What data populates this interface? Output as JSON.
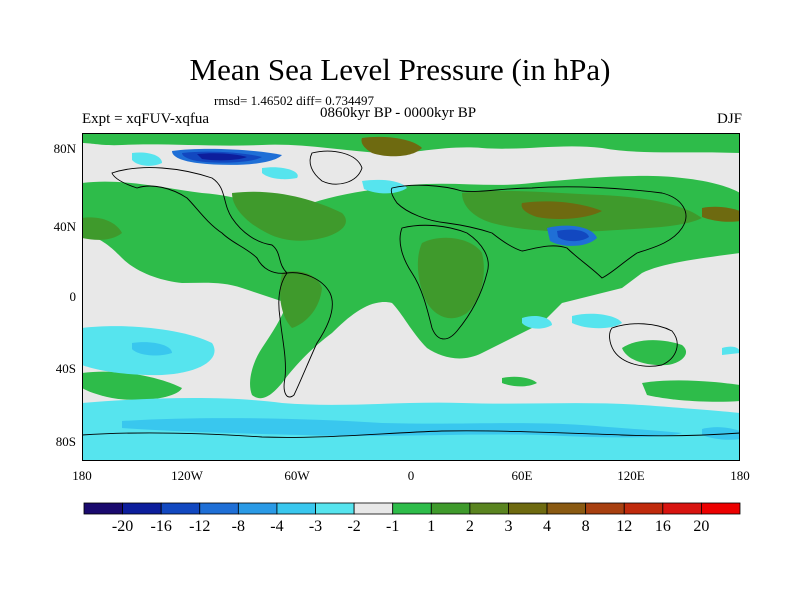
{
  "title": "Mean Sea Level Pressure (in hPa)",
  "stats": "rmsd= 1.46502 diff= 0.734497",
  "experiment": "Expt = xqFUV-xqfua",
  "period": "0860kyr BP - 0000kyr BP",
  "season": "DJF",
  "lat_labels": [
    "80N",
    "40N",
    "0",
    "40S",
    "80S"
  ],
  "lon_labels": [
    "180",
    "120W",
    "60W",
    "0",
    "60E",
    "120E",
    "180"
  ],
  "colorbar": {
    "labels": [
      "-20",
      "-16",
      "-12",
      "-8",
      "-4",
      "-3",
      "-2",
      "-1",
      "1",
      "2",
      "3",
      "4",
      "8",
      "12",
      "16",
      "20"
    ],
    "colors": [
      "#1a0a6e",
      "#0d1e9c",
      "#1248c0",
      "#1f6fd6",
      "#2a9ae6",
      "#39c7ee",
      "#56e4ee",
      "#e8e8e8",
      "#2ebc4a",
      "#3f9a2c",
      "#5a8420",
      "#6e6a10",
      "#8a5a12",
      "#a84010",
      "#c02a0c",
      "#d81410",
      "#ec0000"
    ]
  },
  "map_colors": {
    "ocean_background": "#e8e8e8",
    "positive_1_2": "#2ebc4a",
    "positive_2_3": "#3f9a2c",
    "positive_3_4": "#6e6a10",
    "positive_4_8": "#8a5a12",
    "negative_1_2": "#56e4ee",
    "negative_2_3": "#39c7ee",
    "negative_4_8": "#1f6fd6",
    "negative_8_12": "#1248c0",
    "negative_12_16": "#0d1e9c",
    "coastline": "#000000"
  }
}
